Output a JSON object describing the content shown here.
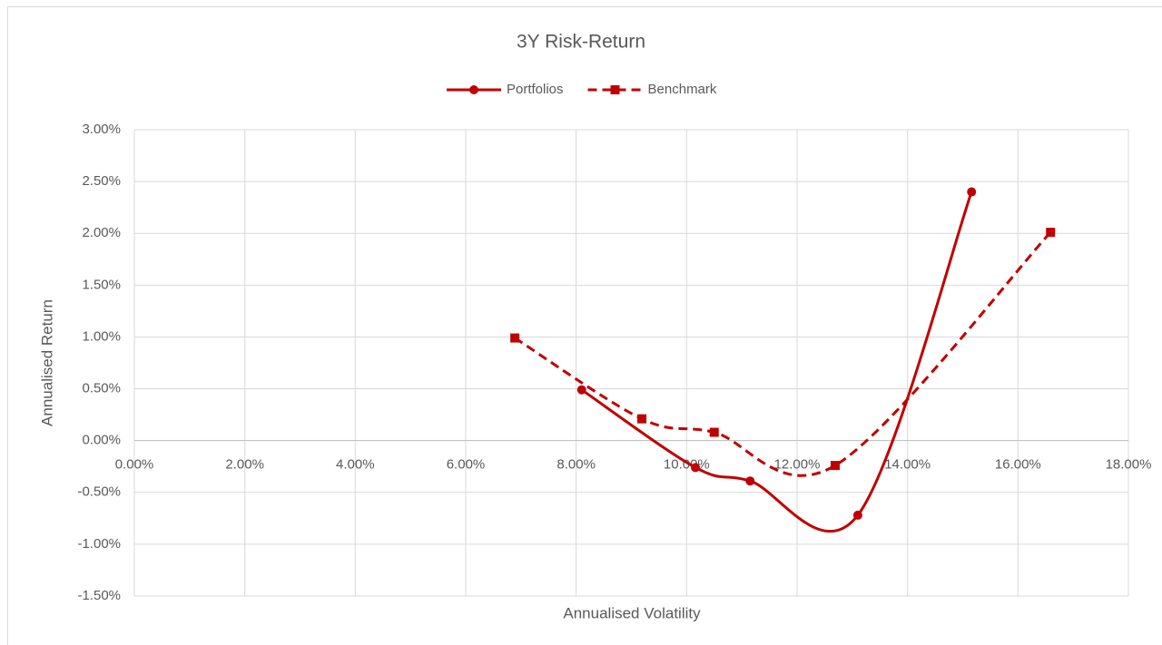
{
  "chart_data": {
    "type": "scatter-smooth",
    "title": "3Y Risk-Return",
    "x_label": "Annualised Volatility",
    "y_label": "Annualised Return",
    "xlim": [
      0,
      18
    ],
    "ylim": [
      -1.5,
      3
    ],
    "xticks": [
      {
        "value": 0,
        "label": "0.00%"
      },
      {
        "value": 2,
        "label": "2.00%"
      },
      {
        "value": 4,
        "label": "4.00%"
      },
      {
        "value": 6,
        "label": "6.00%"
      },
      {
        "value": 8,
        "label": "8.00%"
      },
      {
        "value": 10,
        "label": "10.00%"
      },
      {
        "value": 12,
        "label": "12.00%"
      },
      {
        "value": 14,
        "label": "14.00%"
      },
      {
        "value": 16,
        "label": "16.00%"
      },
      {
        "value": 18,
        "label": "18.00%"
      }
    ],
    "yticks": [
      {
        "value": 3,
        "label": "3.00%"
      },
      {
        "value": 2.5,
        "label": "2.50%"
      },
      {
        "value": 2,
        "label": "2.00%"
      },
      {
        "value": 1.5,
        "label": "1.50%"
      },
      {
        "value": 1,
        "label": "1.00%"
      },
      {
        "value": 0.5,
        "label": "0.50%"
      },
      {
        "value": 0,
        "label": "0.00%"
      },
      {
        "value": -0.5,
        "label": "-0.50%"
      },
      {
        "value": -1,
        "label": "-1.00%"
      },
      {
        "value": -1.5,
        "label": "-1.50%"
      }
    ],
    "grid": true,
    "legend": "top",
    "series": [
      {
        "name": "Portfolios",
        "color": "#c00000",
        "line_style": "solid",
        "marker": "circle",
        "x": [
          8.1,
          10.16,
          11.15,
          13.1,
          15.16
        ],
        "values": [
          0.49,
          -0.26,
          -0.39,
          -0.72,
          2.4
        ]
      },
      {
        "name": "Benchmark",
        "color": "#c00000",
        "line_style": "dashed",
        "marker": "square",
        "x": [
          6.89,
          9.19,
          10.5,
          12.69,
          16.59
        ],
        "values": [
          0.99,
          0.21,
          0.08,
          -0.24,
          2.01
        ]
      }
    ]
  }
}
